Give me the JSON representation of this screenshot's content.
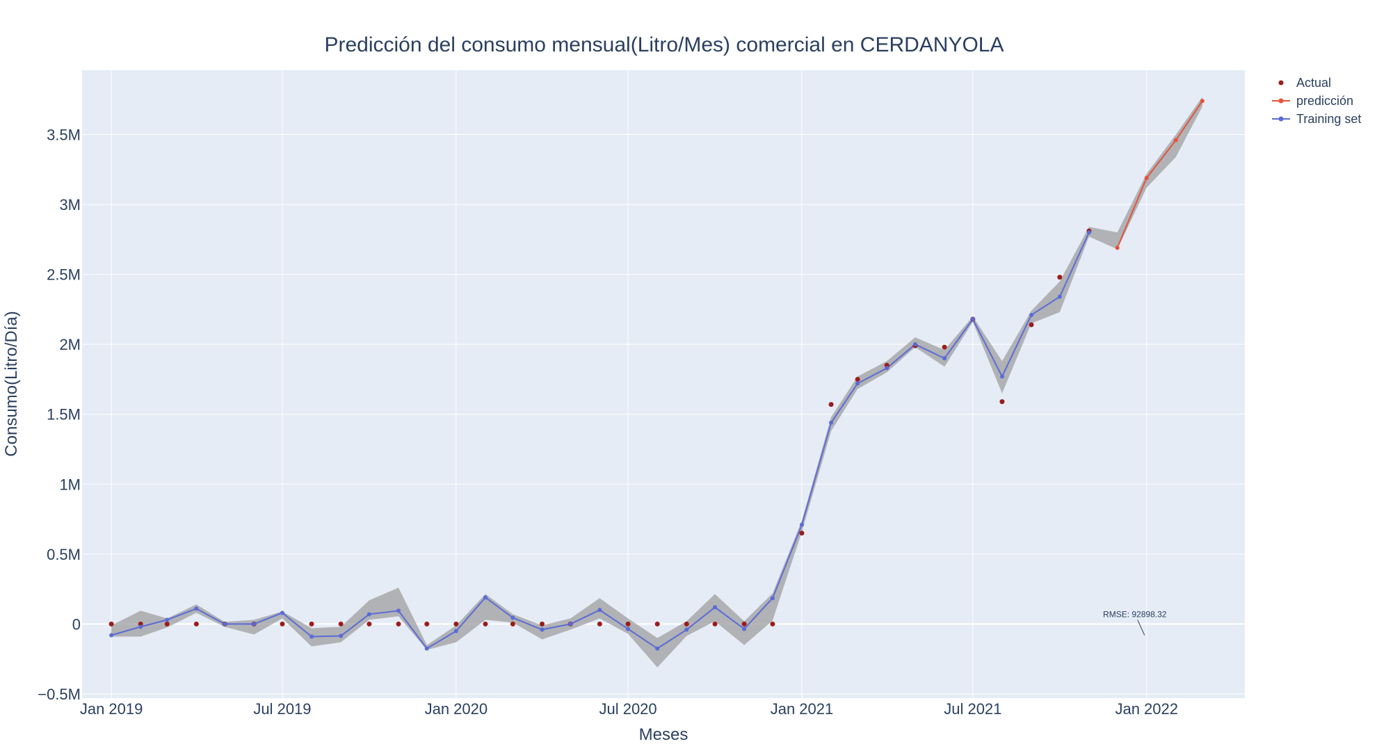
{
  "chart_data": {
    "type": "line",
    "title": "Predicción del consumo mensual(Litro/Mes) comercial en CERDANYOLA",
    "xlabel": "Meses",
    "ylabel": "Consumo(Litro/Día)",
    "xlim": [
      "2018-12-01",
      "2022-04-15"
    ],
    "ylim": [
      -530000,
      3960000
    ],
    "x_ticks": [
      {
        "date": "2019-01-01",
        "label": "Jan 2019"
      },
      {
        "date": "2019-07-01",
        "label": "Jul 2019"
      },
      {
        "date": "2020-01-01",
        "label": "Jan 2020"
      },
      {
        "date": "2020-07-01",
        "label": "Jul 2020"
      },
      {
        "date": "2021-01-01",
        "label": "Jan 2021"
      },
      {
        "date": "2021-07-01",
        "label": "Jul 2021"
      },
      {
        "date": "2022-01-01",
        "label": "Jan 2022"
      }
    ],
    "y_ticks": [
      {
        "value": -500000,
        "label": "−0.5M"
      },
      {
        "value": 0,
        "label": "0"
      },
      {
        "value": 500000,
        "label": "0.5M"
      },
      {
        "value": 1000000,
        "label": "1M"
      },
      {
        "value": 1500000,
        "label": "1.5M"
      },
      {
        "value": 2000000,
        "label": "2M"
      },
      {
        "value": 2500000,
        "label": "2.5M"
      },
      {
        "value": 3000000,
        "label": "3M"
      },
      {
        "value": 3500000,
        "label": "3.5M"
      }
    ],
    "grid": true,
    "legend_position": "top-right",
    "colors": {
      "actual": "#9b1c1c",
      "prediction": "#e5533c",
      "training": "#5b6bd6",
      "band": "#9a9a9a",
      "plot_bg": "#e5ecf6",
      "grid": "#ffffff"
    },
    "series": [
      {
        "name": "Actual",
        "mode": "markers",
        "x": [
          "2019-01-01",
          "2019-02-01",
          "2019-03-01",
          "2019-04-01",
          "2019-05-01",
          "2019-06-01",
          "2019-07-01",
          "2019-08-01",
          "2019-09-01",
          "2019-10-01",
          "2019-11-01",
          "2019-12-01",
          "2020-01-01",
          "2020-02-01",
          "2020-03-01",
          "2020-04-01",
          "2020-05-01",
          "2020-06-01",
          "2020-07-01",
          "2020-08-01",
          "2020-09-01",
          "2020-10-01",
          "2020-11-01",
          "2020-12-01",
          "2021-01-01",
          "2021-02-01",
          "2021-03-01",
          "2021-04-01",
          "2021-05-01",
          "2021-06-01",
          "2021-07-01",
          "2021-08-01",
          "2021-09-01",
          "2021-10-01",
          "2021-11-01"
        ],
        "y": [
          0,
          0,
          0,
          0,
          0,
          0,
          0,
          0,
          0,
          0,
          0,
          0,
          0,
          0,
          0,
          0,
          0,
          0,
          0,
          0,
          0,
          0,
          0,
          0,
          650000,
          1570000,
          1750000,
          1850000,
          1990000,
          1980000,
          2180000,
          1590000,
          2140000,
          2480000,
          2810000
        ]
      },
      {
        "name": "predicción",
        "mode": "lines+markers",
        "x": [
          "2021-12-01",
          "2022-01-01",
          "2022-02-01",
          "2022-03-01"
        ],
        "y": [
          2690000,
          3190000,
          3460000,
          3740000
        ]
      },
      {
        "name": "Training set",
        "mode": "lines+markers",
        "x": [
          "2019-01-01",
          "2019-02-01",
          "2019-03-01",
          "2019-04-01",
          "2019-05-01",
          "2019-06-01",
          "2019-07-01",
          "2019-08-01",
          "2019-09-01",
          "2019-10-01",
          "2019-11-01",
          "2019-12-01",
          "2020-01-01",
          "2020-02-01",
          "2020-03-01",
          "2020-04-01",
          "2020-05-01",
          "2020-06-01",
          "2020-07-01",
          "2020-08-01",
          "2020-09-01",
          "2020-10-01",
          "2020-11-01",
          "2020-12-01",
          "2021-01-01",
          "2021-02-01",
          "2021-03-01",
          "2021-04-01",
          "2021-05-01",
          "2021-06-01",
          "2021-07-01",
          "2021-08-01",
          "2021-09-01",
          "2021-10-01",
          "2021-11-01"
        ],
        "y": [
          -80000,
          -20000,
          30000,
          110000,
          0,
          0,
          80000,
          -90000,
          -85000,
          70000,
          95000,
          -175000,
          -50000,
          190000,
          45000,
          -40000,
          0,
          100000,
          -35000,
          -175000,
          -40000,
          120000,
          -35000,
          185000,
          710000,
          1440000,
          1720000,
          1830000,
          2000000,
          1900000,
          2180000,
          1770000,
          2210000,
          2340000,
          2800000
        ]
      }
    ],
    "band": {
      "x": [
        "2019-01-01",
        "2019-02-01",
        "2019-03-01",
        "2019-04-01",
        "2019-05-01",
        "2019-06-01",
        "2019-07-01",
        "2019-08-01",
        "2019-09-01",
        "2019-10-01",
        "2019-11-01",
        "2019-12-01",
        "2020-01-01",
        "2020-02-01",
        "2020-03-01",
        "2020-04-01",
        "2020-05-01",
        "2020-06-01",
        "2020-07-01",
        "2020-08-01",
        "2020-09-01",
        "2020-10-01",
        "2020-11-01",
        "2020-12-01",
        "2021-01-01",
        "2021-02-01",
        "2021-03-01",
        "2021-04-01",
        "2021-05-01",
        "2021-06-01",
        "2021-07-01",
        "2021-08-01",
        "2021-09-01",
        "2021-10-01",
        "2021-11-01",
        "2021-12-01",
        "2022-01-01",
        "2022-02-01",
        "2022-03-01"
      ],
      "upper": [
        -10000,
        95000,
        40000,
        140000,
        15000,
        30000,
        90000,
        -30000,
        -20000,
        170000,
        260000,
        -150000,
        -10000,
        215000,
        70000,
        -10000,
        40000,
        185000,
        40000,
        -100000,
        20000,
        215000,
        20000,
        220000,
        740000,
        1480000,
        1770000,
        1880000,
        2050000,
        1960000,
        2200000,
        1880000,
        2240000,
        2450000,
        2840000,
        2800000,
        3220000,
        3500000,
        3770000
      ],
      "lower": [
        -90000,
        -90000,
        -25000,
        80000,
        -20000,
        -75000,
        40000,
        -160000,
        -130000,
        30000,
        55000,
        -185000,
        -130000,
        30000,
        10000,
        -110000,
        -40000,
        40000,
        -70000,
        -310000,
        -85000,
        20000,
        -150000,
        25000,
        660000,
        1380000,
        1680000,
        1800000,
        1980000,
        1840000,
        2160000,
        1650000,
        2150000,
        2230000,
        2770000,
        2680000,
        3120000,
        3340000,
        3700000
      ]
    },
    "annotation": {
      "text": "RMSE: 92898.32",
      "x": "2022-01-01",
      "y": -80000
    }
  }
}
